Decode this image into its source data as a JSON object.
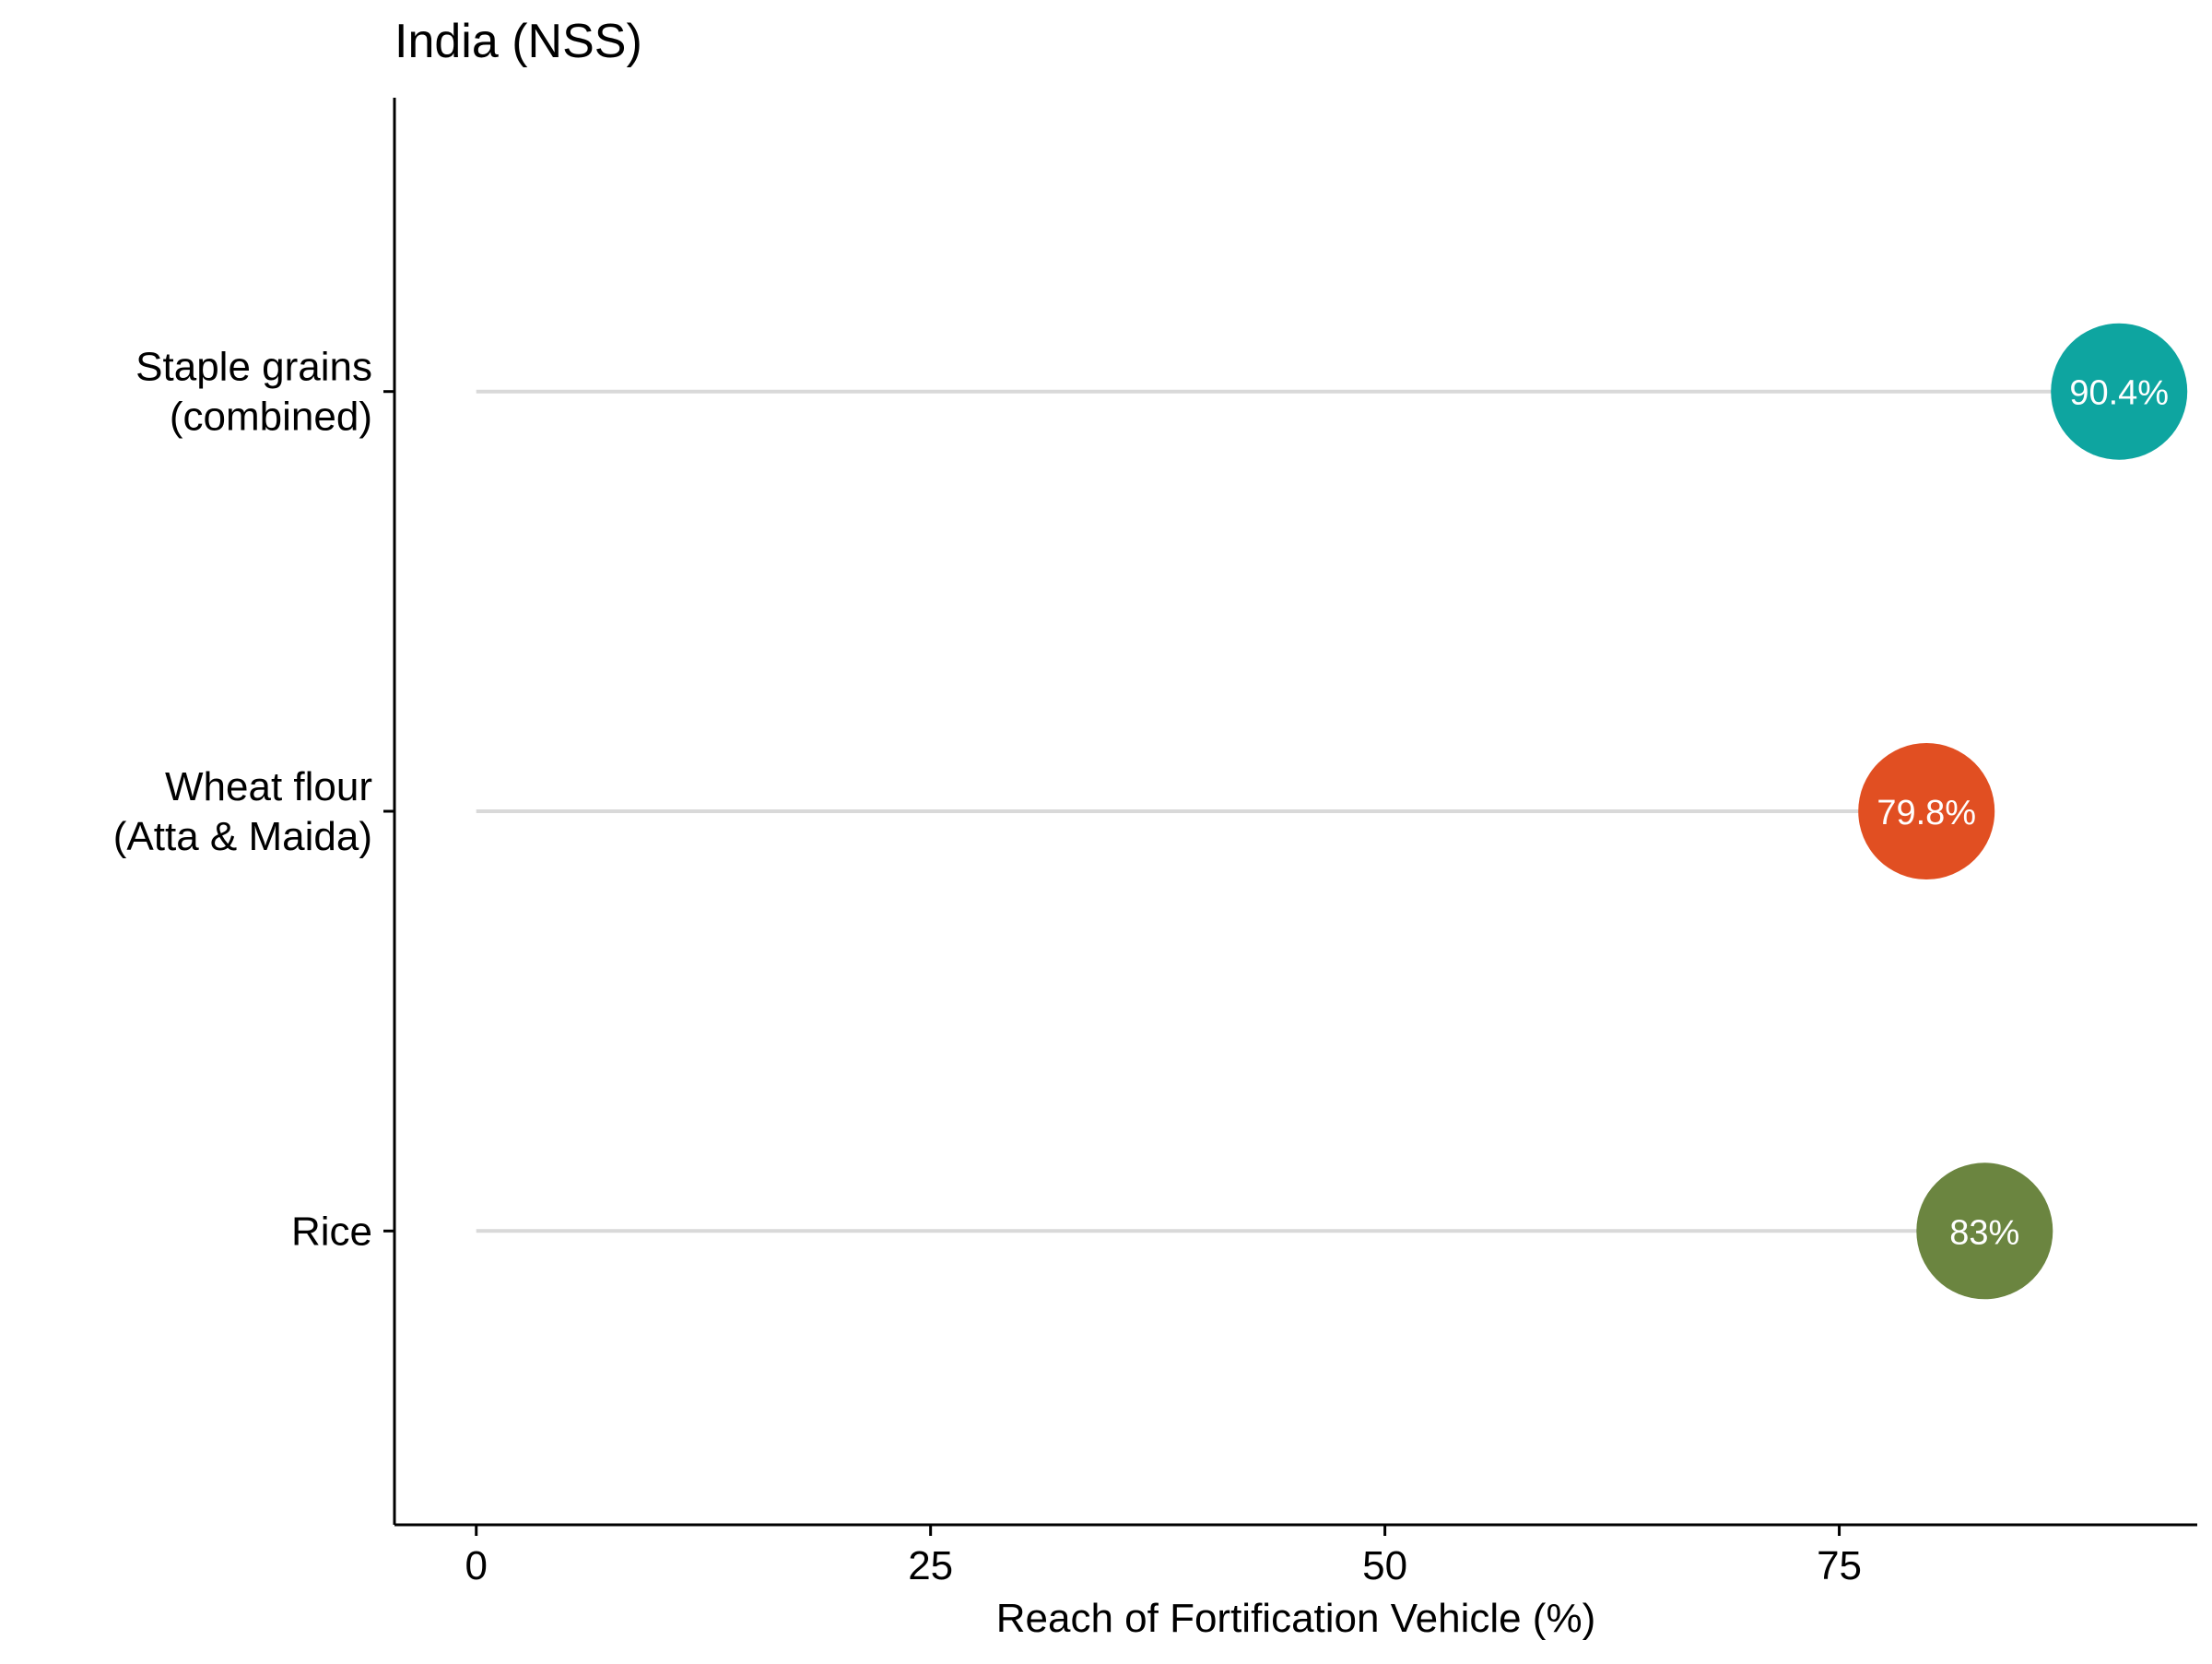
{
  "chart_data": {
    "type": "lollipop",
    "title": "India (NSS)",
    "xlabel": "Reach of Fortification Vehicle (%)",
    "ylabel": "",
    "xlim": [
      -4.5,
      94.7
    ],
    "x_ticks": [
      0,
      25,
      50,
      75
    ],
    "grid": false,
    "legend": "none",
    "categories": [
      [
        "Staple grains",
        "(combined)"
      ],
      [
        "Wheat flour",
        "(Atta & Maida)"
      ],
      [
        "Rice"
      ]
    ],
    "values": [
      90.4,
      79.8,
      83
    ],
    "value_labels": [
      "90.4%",
      "79.8%",
      "83%"
    ],
    "colors": [
      "#0ea5a0",
      "#e14f22",
      "#6b8540"
    ],
    "stem_color": "#d9d9d9",
    "label_color": "#ffffff"
  }
}
